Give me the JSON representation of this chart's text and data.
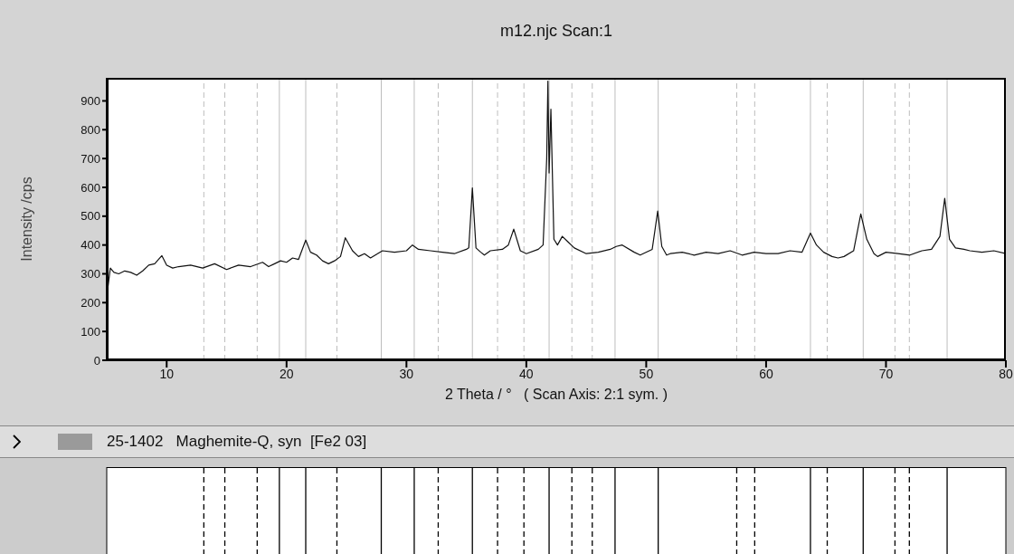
{
  "chart_data": {
    "type": "line",
    "title": "m12.njc Scan:1",
    "xlabel": "2 Theta / °   ( Scan Axis: 2:1 sym. )",
    "ylabel": "Intensity /cps",
    "xlim": [
      5,
      80
    ],
    "xticks": [
      10,
      20,
      30,
      40,
      50,
      60,
      70,
      80
    ],
    "ylim": [
      0,
      980
    ],
    "yticks": [
      0,
      100,
      200,
      300,
      400,
      500,
      600,
      700,
      800,
      900
    ],
    "marker": "none",
    "line_style": "solid",
    "annotations": [
      "25-1402   Maghemite-Q, syn  [Fe2 03]"
    ],
    "series": [
      {
        "color": "#111111",
        "x": [
          5,
          5.3,
          5.6,
          6,
          6.5,
          7,
          7.5,
          8,
          8.5,
          9,
          9.6,
          10,
          10.5,
          11,
          12,
          13,
          14,
          15,
          16,
          17,
          18,
          18.5,
          19,
          19.5,
          20,
          20.5,
          21,
          21.6,
          22,
          22.5,
          23,
          23.5,
          24,
          24.5,
          24.9,
          25.5,
          26,
          26.5,
          27,
          28,
          29,
          30,
          30.5,
          31,
          32,
          33,
          34,
          35,
          35.2,
          35.5,
          35.8,
          36.2,
          36.5,
          37,
          38,
          38.5,
          38.95,
          39.5,
          40,
          41,
          41.4,
          41.7,
          41.8,
          41.9,
          42.05,
          42.3,
          42.6,
          43,
          43.5,
          44,
          45,
          46,
          47,
          47.5,
          48,
          49,
          49.5,
          50.5,
          50.96,
          51.3,
          51.7,
          52,
          53,
          54,
          55,
          56,
          57,
          58,
          59,
          60,
          61,
          62,
          63,
          63.7,
          64.2,
          64.8,
          65.5,
          66,
          66.5,
          67.3,
          67.9,
          68.4,
          69,
          69.3,
          70,
          71,
          72,
          73,
          73.8,
          74.5,
          74.9,
          75.3,
          75.8,
          76.5,
          77,
          78,
          79,
          80
        ],
        "values": [
          220,
          320,
          305,
          300,
          310,
          305,
          295,
          310,
          330,
          335,
          363,
          330,
          320,
          325,
          330,
          320,
          335,
          315,
          330,
          325,
          340,
          325,
          335,
          345,
          340,
          355,
          350,
          417,
          375,
          365,
          345,
          335,
          345,
          360,
          425,
          380,
          360,
          370,
          355,
          380,
          375,
          380,
          400,
          385,
          380,
          375,
          370,
          385,
          390,
          598,
          390,
          375,
          365,
          380,
          385,
          400,
          455,
          380,
          370,
          385,
          400,
          700,
          969,
          650,
          871,
          420,
          400,
          430,
          410,
          390,
          370,
          375,
          385,
          395,
          400,
          375,
          365,
          385,
          518,
          395,
          365,
          370,
          375,
          365,
          375,
          370,
          380,
          365,
          375,
          370,
          370,
          380,
          375,
          441,
          400,
          375,
          360,
          355,
          360,
          380,
          508,
          420,
          370,
          360,
          375,
          370,
          365,
          380,
          385,
          430,
          562,
          420,
          390,
          385,
          380,
          375,
          380,
          370
        ]
      }
    ],
    "ref_lines": [
      {
        "axis": "x",
        "value": 13.1,
        "line_style": "dashed"
      },
      {
        "axis": "x",
        "value": 14.85,
        "line_style": "dashed"
      },
      {
        "axis": "x",
        "value": 17.55,
        "line_style": "dashed"
      },
      {
        "axis": "x",
        "value": 19.4,
        "line_style": "solid"
      },
      {
        "axis": "x",
        "value": 21.6,
        "line_style": "solid"
      },
      {
        "axis": "x",
        "value": 24.2,
        "line_style": "dashed"
      },
      {
        "axis": "x",
        "value": 27.9,
        "line_style": "solid"
      },
      {
        "axis": "x",
        "value": 30.65,
        "line_style": "solid"
      },
      {
        "axis": "x",
        "value": 32.65,
        "line_style": "dashed"
      },
      {
        "axis": "x",
        "value": 35.5,
        "line_style": "solid"
      },
      {
        "axis": "x",
        "value": 37.6,
        "line_style": "dashed"
      },
      {
        "axis": "x",
        "value": 39.8,
        "line_style": "dashed"
      },
      {
        "axis": "x",
        "value": 41.9,
        "line_style": "solid"
      },
      {
        "axis": "x",
        "value": 43.8,
        "line_style": "dashed"
      },
      {
        "axis": "x",
        "value": 45.5,
        "line_style": "dashed"
      },
      {
        "axis": "x",
        "value": 47.4,
        "line_style": "solid"
      },
      {
        "axis": "x",
        "value": 51.0,
        "line_style": "solid"
      },
      {
        "axis": "x",
        "value": 57.55,
        "line_style": "dashed"
      },
      {
        "axis": "x",
        "value": 59.05,
        "line_style": "dashed"
      },
      {
        "axis": "x",
        "value": 63.7,
        "line_style": "solid"
      },
      {
        "axis": "x",
        "value": 65.1,
        "line_style": "dashed"
      },
      {
        "axis": "x",
        "value": 68.1,
        "line_style": "solid"
      },
      {
        "axis": "x",
        "value": 70.75,
        "line_style": "dashed"
      },
      {
        "axis": "x",
        "value": 71.95,
        "line_style": "dashed"
      },
      {
        "axis": "x",
        "value": 75.1,
        "line_style": "solid"
      }
    ]
  }
}
